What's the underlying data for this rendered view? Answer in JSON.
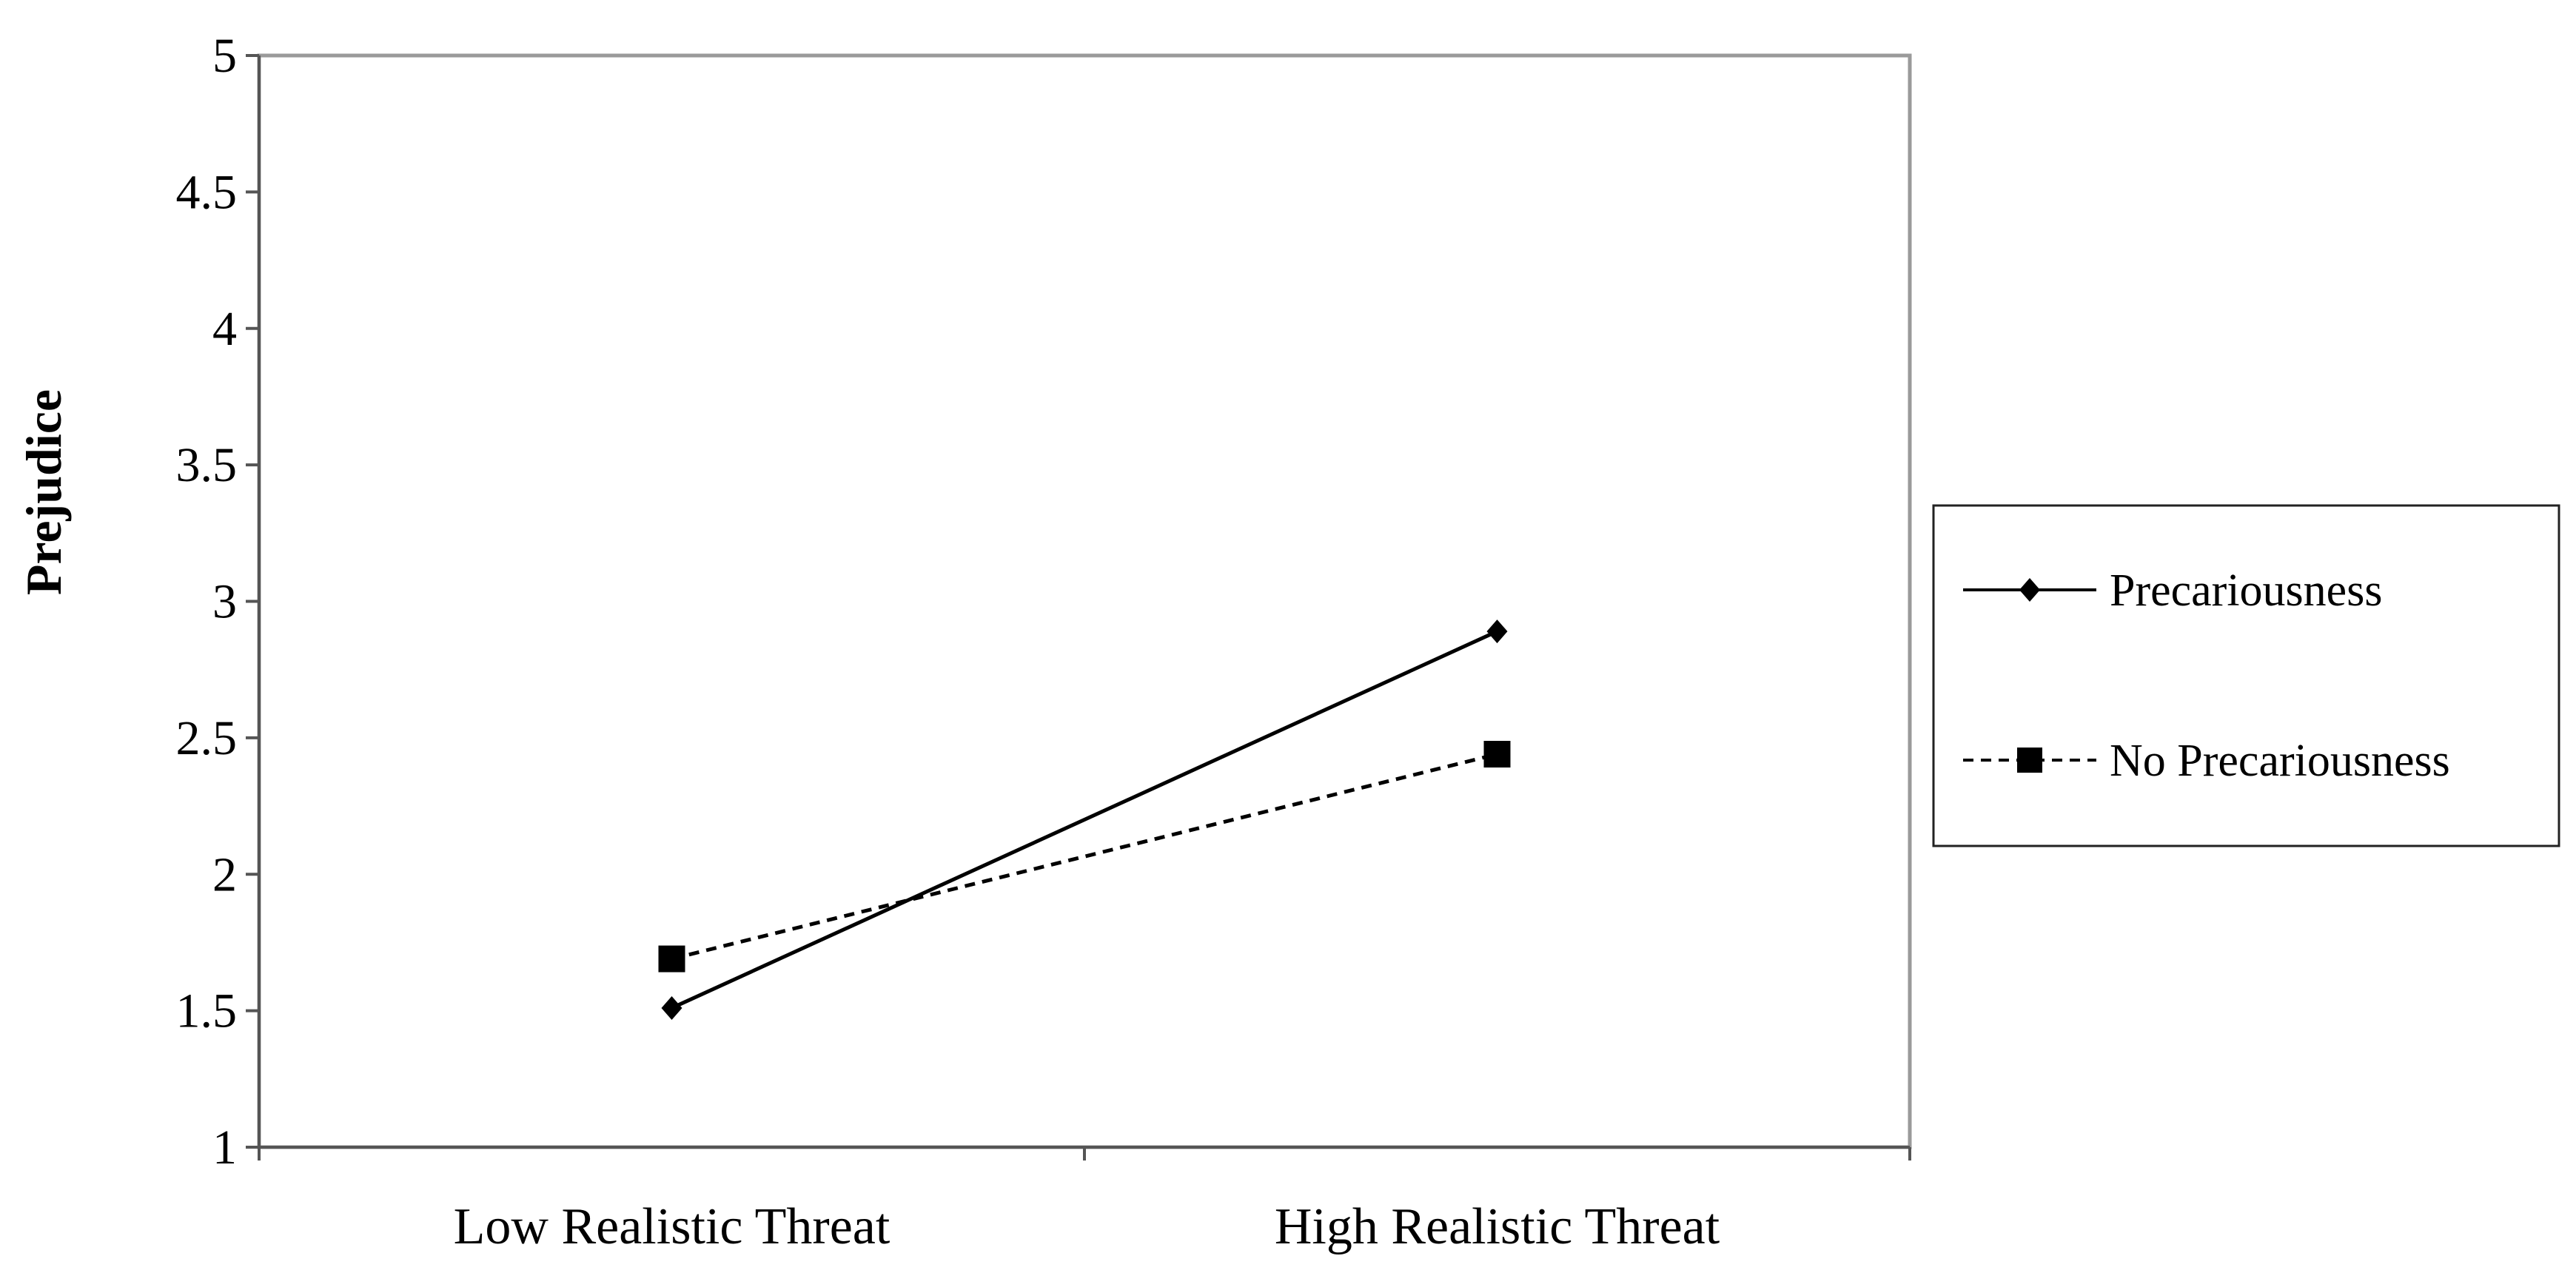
{
  "chart_data": {
    "type": "line",
    "title": "",
    "xlabel": "",
    "ylabel": "Prejudice",
    "categories": [
      "Low Realistic Threat",
      "High Realistic Threat"
    ],
    "ylim": [
      1,
      5
    ],
    "yticks": [
      "1",
      "1.5",
      "2",
      "2.5",
      "3",
      "3.5",
      "4",
      "4.5",
      "5"
    ],
    "grid": false,
    "legend_position": "right",
    "series": [
      {
        "name": "Precariousness",
        "values": [
          1.51,
          2.89
        ],
        "marker": "diamond",
        "line": "solid",
        "color": "#000000"
      },
      {
        "name": "No Precariousness",
        "values": [
          1.69,
          2.44
        ],
        "marker": "square",
        "line": "dashed",
        "color": "#000000"
      }
    ]
  }
}
